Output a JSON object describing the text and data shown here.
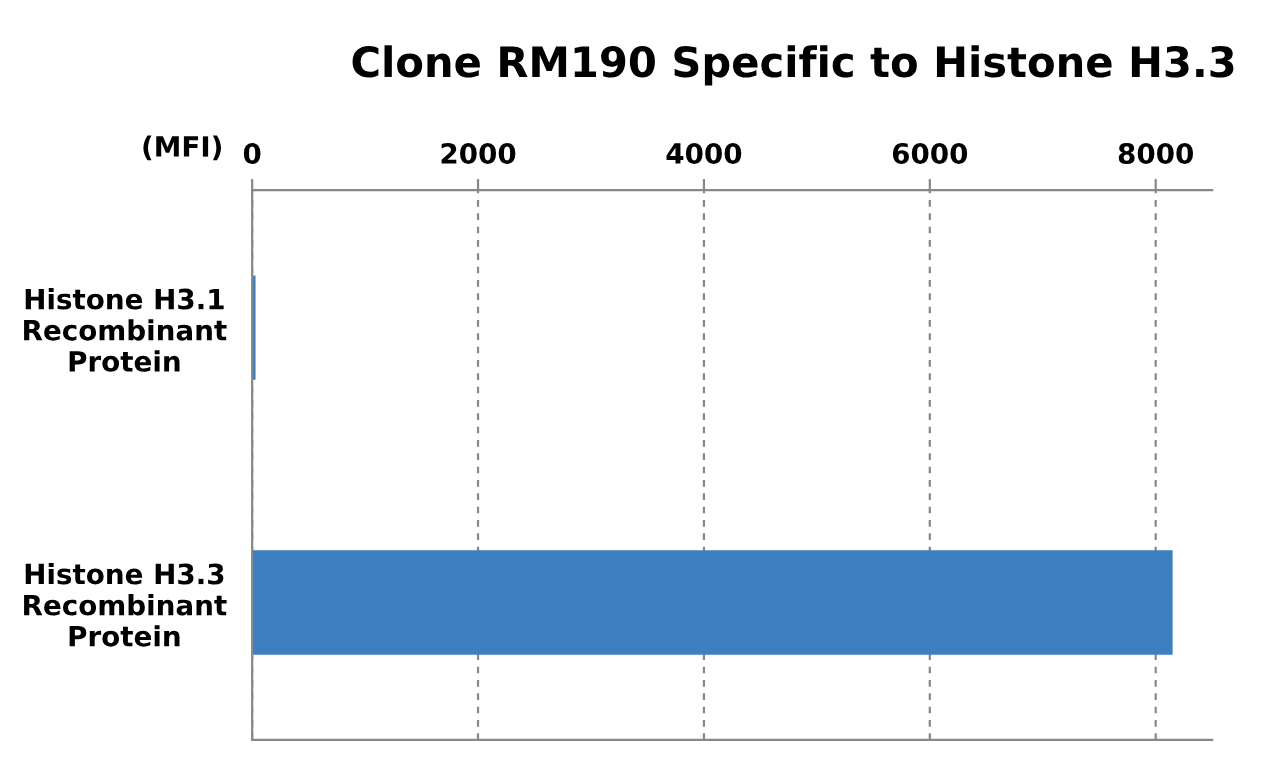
{
  "chart_data": {
    "type": "bar",
    "orientation": "horizontal",
    "title": "Clone RM190 Specific to Histone H3.3",
    "xlabel": "(MFI)",
    "categories": [
      "Histone H3.1\nRecombinant\nProtein",
      "Histone H3.3\nRecombinant\nProtein"
    ],
    "series": [
      {
        "color": "#3e7fc1",
        "values": [
          30,
          8150
        ]
      }
    ],
    "xlim": [
      0,
      8500
    ],
    "xticks": [
      0,
      2000,
      4000,
      6000,
      8000
    ],
    "grid": "x"
  }
}
